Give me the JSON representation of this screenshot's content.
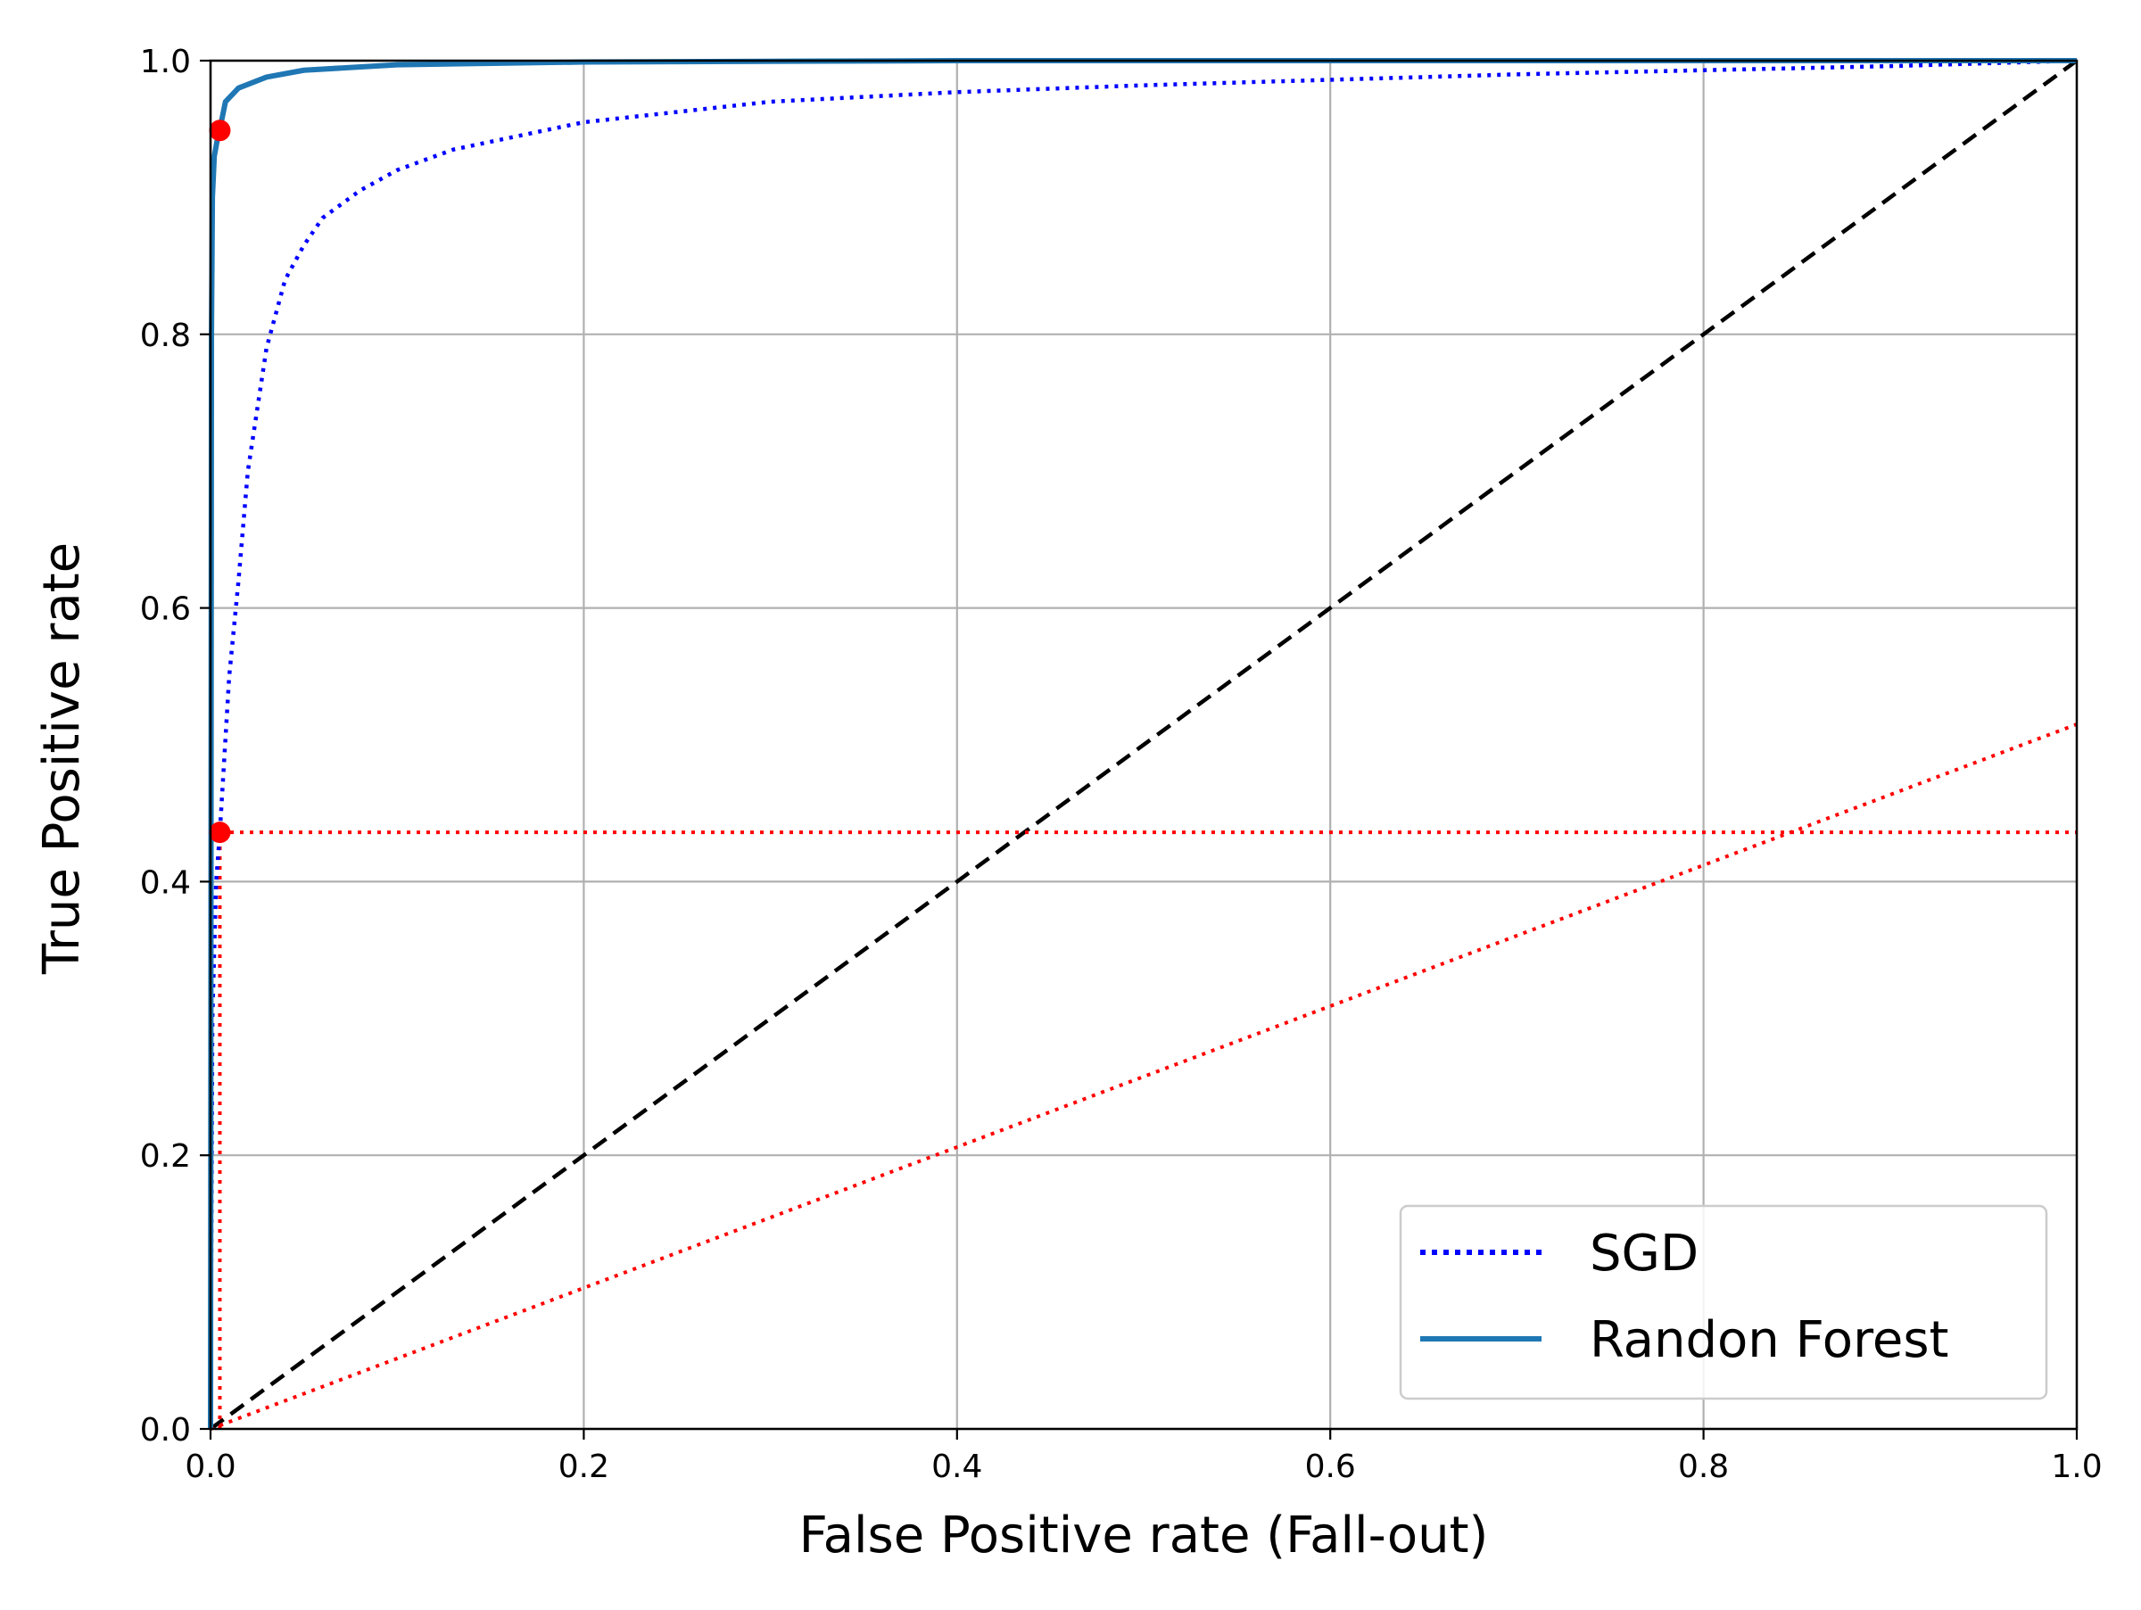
{
  "chart_data": {
    "type": "line",
    "title": "",
    "xlabel": "False Positive rate (Fall-out)",
    "ylabel": "True Positive rate",
    "xlim": [
      0.0,
      1.0
    ],
    "ylim": [
      0.0,
      1.0
    ],
    "x_ticks": [
      "0.0",
      "0.2",
      "0.4",
      "0.6",
      "0.8",
      "1.0"
    ],
    "y_ticks": [
      "0.0",
      "0.2",
      "0.4",
      "0.6",
      "0.8",
      "1.0"
    ],
    "grid": true,
    "legend_position": "lower-right",
    "series": [
      {
        "name": "SGD",
        "color": "#0000ff",
        "style": "dotted",
        "points": [
          [
            0.0,
            0.0
          ],
          [
            0.001,
            0.3
          ],
          [
            0.003,
            0.4
          ],
          [
            0.005,
            0.436
          ],
          [
            0.01,
            0.55
          ],
          [
            0.015,
            0.62
          ],
          [
            0.02,
            0.7
          ],
          [
            0.03,
            0.79
          ],
          [
            0.04,
            0.84
          ],
          [
            0.05,
            0.865
          ],
          [
            0.06,
            0.885
          ],
          [
            0.08,
            0.905
          ],
          [
            0.1,
            0.92
          ],
          [
            0.13,
            0.935
          ],
          [
            0.2,
            0.955
          ],
          [
            0.3,
            0.97
          ],
          [
            0.4,
            0.977
          ],
          [
            0.5,
            0.982
          ],
          [
            0.6,
            0.986
          ],
          [
            0.7,
            0.99
          ],
          [
            0.8,
            0.993
          ],
          [
            0.9,
            0.996
          ],
          [
            1.0,
            1.0
          ]
        ]
      },
      {
        "name": "Randon Forest",
        "color": "#1f77b4",
        "style": "solid",
        "points": [
          [
            0.0,
            0.0
          ],
          [
            0.0005,
            0.8
          ],
          [
            0.001,
            0.9
          ],
          [
            0.002,
            0.93
          ],
          [
            0.004,
            0.945
          ],
          [
            0.005,
            0.95
          ],
          [
            0.008,
            0.97
          ],
          [
            0.015,
            0.98
          ],
          [
            0.03,
            0.988
          ],
          [
            0.05,
            0.993
          ],
          [
            0.1,
            0.997
          ],
          [
            0.2,
            0.999
          ],
          [
            0.4,
            1.0
          ],
          [
            1.0,
            1.0
          ]
        ]
      }
    ],
    "reference_lines": [
      {
        "kind": "diagonal",
        "color": "#000000",
        "style": "dashed",
        "points": [
          [
            0.0,
            0.0
          ],
          [
            1.0,
            1.0
          ]
        ]
      },
      {
        "kind": "threshold-horizontal",
        "color": "#ff0000",
        "style": "dotted",
        "points": [
          [
            0.0,
            0.436
          ],
          [
            1.0,
            0.436
          ]
        ]
      },
      {
        "kind": "threshold-vertical",
        "color": "#ff0000",
        "style": "dotted",
        "points": [
          [
            0.005,
            0.0
          ],
          [
            0.005,
            0.436
          ]
        ]
      },
      {
        "kind": "sloped",
        "color": "#ff0000",
        "style": "dotted",
        "points": [
          [
            0.0,
            0.0
          ],
          [
            1.0,
            0.515
          ]
        ]
      }
    ],
    "markers": [
      {
        "x": 0.005,
        "y": 0.949,
        "color": "#ff0000"
      },
      {
        "x": 0.005,
        "y": 0.436,
        "color": "#ff0000"
      }
    ]
  }
}
